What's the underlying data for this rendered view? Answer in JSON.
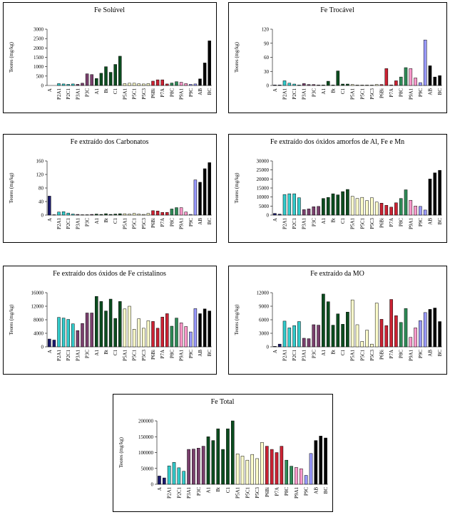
{
  "chart_data": [
    {
      "type": "bar",
      "title": "Fe Solúvel",
      "ylabel": "Teores (mg/kg)",
      "categories": [
        "A",
        null,
        "P2A1",
        null,
        "P2C1",
        null,
        "P3A1",
        null,
        "P3C",
        null,
        "A1",
        null,
        "Bt",
        null,
        "C1",
        null,
        "P5A1",
        null,
        "P5C1",
        null,
        "P5C3",
        null,
        "P6Bi",
        null,
        "P7A",
        null,
        "P8C",
        null,
        "P9A1",
        null,
        "P9C",
        null,
        "AB",
        null,
        "BC"
      ],
      "values": [
        0,
        0,
        100,
        80,
        60,
        80,
        60,
        120,
        620,
        580,
        370,
        650,
        1000,
        700,
        1120,
        1560,
        100,
        120,
        120,
        90,
        80,
        100,
        230,
        300,
        300,
        80,
        130,
        200,
        170,
        100,
        60,
        80,
        350,
        1200,
        2380
      ],
      "colors": [
        "#1a1a6e",
        "#1a1a6e",
        "#33cccc",
        "#33cccc",
        "#33cccc",
        "#33cccc",
        "#7b3f6e",
        "#7b3f6e",
        "#7b3f6e",
        "#7b3f6e",
        "#0b4d1f",
        "#0b4d1f",
        "#0b4d1f",
        "#0b4d1f",
        "#0b4d1f",
        "#0b4d1f",
        "#ffffcc",
        "#ffffcc",
        "#ffffcc",
        "#ffffcc",
        "#ffffcc",
        "#ffffcc",
        "#cc2233",
        "#cc2233",
        "#cc2233",
        "#cc2233",
        "#2e8b57",
        "#2e8b57",
        "#ff99cc",
        "#ff99cc",
        "#9999ff",
        "#9999ff",
        "#000000",
        "#000000",
        "#000000"
      ],
      "ylim": [
        0,
        3000
      ],
      "yticks": [
        0,
        500,
        1000,
        1500,
        2000,
        2500,
        3000
      ]
    },
    {
      "type": "bar",
      "title": "Fe Trocável",
      "ylabel": "Teores (mg/kg)",
      "categories": [
        "A",
        null,
        "P2A1",
        null,
        "P2C1",
        null,
        "P3A1",
        null,
        "P3C",
        null,
        "A1",
        null,
        "Bt",
        null,
        "C1",
        null,
        "P5A1",
        null,
        "P5C1",
        null,
        "P5C3",
        null,
        "P6Bi",
        null,
        "P7A",
        null,
        "P8C",
        null,
        "P9A1",
        null,
        "P9C",
        null,
        "AB",
        null,
        "BC"
      ],
      "values": [
        1,
        1,
        10,
        5,
        3,
        1,
        4,
        2,
        2,
        1,
        1,
        9,
        1,
        31,
        3,
        3,
        2,
        1,
        1,
        1,
        1,
        2,
        2,
        36,
        1,
        10,
        18,
        38,
        36,
        16,
        6,
        97,
        42,
        18,
        21
      ],
      "colors": [
        "#1a1a6e",
        "#1a1a6e",
        "#33cccc",
        "#33cccc",
        "#33cccc",
        "#33cccc",
        "#7b3f6e",
        "#7b3f6e",
        "#7b3f6e",
        "#7b3f6e",
        "#0b4d1f",
        "#0b4d1f",
        "#0b4d1f",
        "#0b4d1f",
        "#0b4d1f",
        "#0b4d1f",
        "#ffffcc",
        "#ffffcc",
        "#ffffcc",
        "#ffffcc",
        "#ffffcc",
        "#ffffcc",
        "#cc2233",
        "#cc2233",
        "#cc2233",
        "#cc2233",
        "#2e8b57",
        "#2e8b57",
        "#ff99cc",
        "#ff99cc",
        "#9999ff",
        "#9999ff",
        "#000000",
        "#000000",
        "#000000"
      ],
      "ylim": [
        0,
        120
      ],
      "yticks": [
        0,
        30,
        60,
        90,
        120
      ]
    },
    {
      "type": "bar",
      "title": "Fe  extraído dos Carbonatos",
      "ylabel": "Teores (mg/kg)",
      "categories": [
        "A",
        null,
        "P2A1",
        null,
        "P2C1",
        null,
        "P3A1",
        null,
        "P3C",
        null,
        "A1",
        null,
        "Bt",
        null,
        "C1",
        null,
        "P5A1",
        null,
        "P5C1",
        null,
        "P5C3",
        null,
        "P6Bi",
        null,
        "P7A",
        null,
        "P8C",
        null,
        "P9A1",
        null,
        "P9C",
        null,
        "AB",
        null,
        "BC"
      ],
      "values": [
        56,
        1,
        9,
        10,
        6,
        3,
        2,
        1,
        1,
        2,
        3,
        2,
        4,
        2,
        3,
        4,
        4,
        3,
        5,
        3,
        2,
        5,
        13,
        12,
        8,
        8,
        18,
        22,
        22,
        9,
        2,
        104,
        97,
        137,
        155
      ],
      "colors": [
        "#1a1a6e",
        "#1a1a6e",
        "#33cccc",
        "#33cccc",
        "#33cccc",
        "#33cccc",
        "#7b3f6e",
        "#7b3f6e",
        "#7b3f6e",
        "#7b3f6e",
        "#0b4d1f",
        "#0b4d1f",
        "#0b4d1f",
        "#0b4d1f",
        "#0b4d1f",
        "#0b4d1f",
        "#ffffcc",
        "#ffffcc",
        "#ffffcc",
        "#ffffcc",
        "#ffffcc",
        "#ffffcc",
        "#cc2233",
        "#cc2233",
        "#cc2233",
        "#cc2233",
        "#2e8b57",
        "#2e8b57",
        "#ff99cc",
        "#ff99cc",
        "#9999ff",
        "#9999ff",
        "#000000",
        "#000000",
        "#000000"
      ],
      "ylim": [
        0,
        160
      ],
      "yticks": [
        0,
        40,
        80,
        120,
        160
      ]
    },
    {
      "type": "bar",
      "title": "Fe  extraído dos óxidos amorfos de Al, Fe e Mn",
      "ylabel": "Teores (mg/kg)",
      "categories": [
        "A",
        null,
        "P2A1",
        null,
        "P2C1",
        null,
        "P3A1",
        null,
        "P3C",
        null,
        "A1",
        null,
        "Bt",
        null,
        "C1",
        null,
        "P5A1",
        null,
        "P5C1",
        null,
        "P5C3",
        null,
        "P6Bi",
        null,
        "P7A",
        null,
        "P8C",
        null,
        "P9A1",
        null,
        "P9C",
        null,
        "AB",
        null,
        "BC"
      ],
      "values": [
        900,
        500,
        11400,
        11800,
        11800,
        9600,
        3000,
        3400,
        4600,
        4800,
        9200,
        9800,
        11800,
        11200,
        13000,
        14200,
        10400,
        9200,
        9800,
        8000,
        9600,
        7200,
        6600,
        5400,
        4400,
        6800,
        9200,
        14000,
        8200,
        5000,
        4800,
        2800,
        20000,
        23400,
        24800
      ],
      "colors": [
        "#1a1a6e",
        "#1a1a6e",
        "#33cccc",
        "#33cccc",
        "#33cccc",
        "#33cccc",
        "#7b3f6e",
        "#7b3f6e",
        "#7b3f6e",
        "#7b3f6e",
        "#0b4d1f",
        "#0b4d1f",
        "#0b4d1f",
        "#0b4d1f",
        "#0b4d1f",
        "#0b4d1f",
        "#ffffcc",
        "#ffffcc",
        "#ffffcc",
        "#ffffcc",
        "#ffffcc",
        "#ffffcc",
        "#cc2233",
        "#cc2233",
        "#cc2233",
        "#cc2233",
        "#2e8b57",
        "#2e8b57",
        "#ff99cc",
        "#ff99cc",
        "#9999ff",
        "#9999ff",
        "#000000",
        "#000000",
        "#000000"
      ],
      "ylim": [
        0,
        30000
      ],
      "yticks": [
        0,
        5000,
        10000,
        15000,
        20000,
        25000,
        30000
      ]
    },
    {
      "type": "bar",
      "title": "Fe  extraído dos óxidos de Fe cristalinos",
      "ylabel": "Teores (mg/kg)",
      "categories": [
        "A",
        null,
        "P2A1",
        null,
        "P2C1",
        null,
        "P3A1",
        null,
        "P3C",
        null,
        "A1",
        null,
        "Bt",
        null,
        "C1",
        null,
        "P5A1",
        null,
        "P5C1",
        null,
        "P5C3",
        null,
        "P6Bi",
        null,
        "P7A",
        null,
        "P8C",
        null,
        "P9A1",
        null,
        "P9C",
        null,
        "AB",
        null,
        "BC"
      ],
      "values": [
        2300,
        2000,
        8700,
        8500,
        8100,
        6800,
        4800,
        6900,
        10000,
        10000,
        14900,
        13400,
        10600,
        14100,
        8400,
        13400,
        11200,
        12000,
        5200,
        8300,
        5500,
        7700,
        7500,
        5500,
        8800,
        9800,
        6100,
        8500,
        7100,
        6000,
        4400,
        11300,
        9800,
        11200,
        10600
      ],
      "colors": [
        "#1a1a6e",
        "#1a1a6e",
        "#33cccc",
        "#33cccc",
        "#33cccc",
        "#33cccc",
        "#7b3f6e",
        "#7b3f6e",
        "#7b3f6e",
        "#7b3f6e",
        "#0b4d1f",
        "#0b4d1f",
        "#0b4d1f",
        "#0b4d1f",
        "#0b4d1f",
        "#0b4d1f",
        "#ffffcc",
        "#ffffcc",
        "#ffffcc",
        "#ffffcc",
        "#ffffcc",
        "#ffffcc",
        "#cc2233",
        "#cc2233",
        "#cc2233",
        "#cc2233",
        "#2e8b57",
        "#2e8b57",
        "#ff99cc",
        "#ff99cc",
        "#9999ff",
        "#9999ff",
        "#000000",
        "#000000",
        "#000000"
      ],
      "ylim": [
        0,
        16000
      ],
      "yticks": [
        0,
        4000,
        8000,
        12000,
        16000
      ]
    },
    {
      "type": "bar",
      "title": "Fe  extraído da MO",
      "ylabel": "Teores (mg/kg)",
      "categories": [
        "A",
        null,
        "P2A1",
        null,
        "P2C1",
        null,
        "P3A1",
        null,
        "P3C",
        null,
        "A1",
        null,
        "Bt",
        null,
        "C1",
        null,
        "P5A1",
        null,
        "P5C1",
        null,
        "P5C3",
        null,
        "P6Bi",
        null,
        "P7A",
        null,
        "P8C",
        null,
        "P9A1",
        null,
        "P9C",
        null,
        "AB",
        null,
        "BC"
      ],
      "values": [
        100,
        600,
        5700,
        4200,
        4700,
        5600,
        1900,
        1800,
        4900,
        4800,
        11700,
        10000,
        4800,
        7300,
        5000,
        7700,
        10400,
        4900,
        1200,
        3700,
        600,
        9700,
        6100,
        4700,
        10500,
        6900,
        5400,
        8500,
        2100,
        4200,
        5800,
        7600,
        8300,
        8600,
        5600
      ],
      "colors": [
        "#1a1a6e",
        "#1a1a6e",
        "#33cccc",
        "#33cccc",
        "#33cccc",
        "#33cccc",
        "#7b3f6e",
        "#7b3f6e",
        "#7b3f6e",
        "#7b3f6e",
        "#0b4d1f",
        "#0b4d1f",
        "#0b4d1f",
        "#0b4d1f",
        "#0b4d1f",
        "#0b4d1f",
        "#ffffcc",
        "#ffffcc",
        "#ffffcc",
        "#ffffcc",
        "#ffffcc",
        "#ffffcc",
        "#cc2233",
        "#cc2233",
        "#cc2233",
        "#cc2233",
        "#2e8b57",
        "#2e8b57",
        "#ff99cc",
        "#ff99cc",
        "#9999ff",
        "#9999ff",
        "#000000",
        "#000000",
        "#000000"
      ],
      "ylim": [
        0,
        12000
      ],
      "yticks": [
        0,
        3000,
        6000,
        9000,
        12000
      ]
    },
    {
      "type": "bar",
      "title": "Fe Total",
      "ylabel": "Teores (mg/kg)",
      "categories": [
        "A",
        null,
        "P2A1",
        null,
        "P2C1",
        null,
        "P3A1",
        null,
        "P3C",
        null,
        "A1",
        null,
        "Bt",
        null,
        "C1",
        null,
        "P5A1",
        null,
        "P5C1",
        null,
        "P5C3",
        null,
        "P6Bi",
        null,
        "P7A",
        null,
        "P8C",
        null,
        "P9A1",
        null,
        "P9C",
        null,
        "AB",
        null,
        "BC"
      ],
      "values": [
        26000,
        20000,
        58000,
        69000,
        52000,
        41000,
        110000,
        111000,
        114000,
        120000,
        150000,
        138000,
        175000,
        110000,
        175000,
        200000,
        96000,
        89000,
        76000,
        94000,
        81000,
        132000,
        120000,
        110000,
        100000,
        120000,
        76000,
        57000,
        53000,
        49000,
        28000,
        97000,
        138000,
        152000,
        146000
      ],
      "colors": [
        "#1a1a6e",
        "#1a1a6e",
        "#33cccc",
        "#33cccc",
        "#33cccc",
        "#33cccc",
        "#7b3f6e",
        "#7b3f6e",
        "#7b3f6e",
        "#7b3f6e",
        "#0b4d1f",
        "#0b4d1f",
        "#0b4d1f",
        "#0b4d1f",
        "#0b4d1f",
        "#0b4d1f",
        "#ffffcc",
        "#ffffcc",
        "#ffffcc",
        "#ffffcc",
        "#ffffcc",
        "#ffffcc",
        "#cc2233",
        "#cc2233",
        "#cc2233",
        "#cc2233",
        "#2e8b57",
        "#2e8b57",
        "#ff99cc",
        "#ff99cc",
        "#9999ff",
        "#9999ff",
        "#000000",
        "#000000",
        "#000000"
      ],
      "ylim": [
        0,
        200000
      ],
      "yticks": [
        0,
        50000,
        100000,
        150000,
        200000
      ]
    }
  ]
}
